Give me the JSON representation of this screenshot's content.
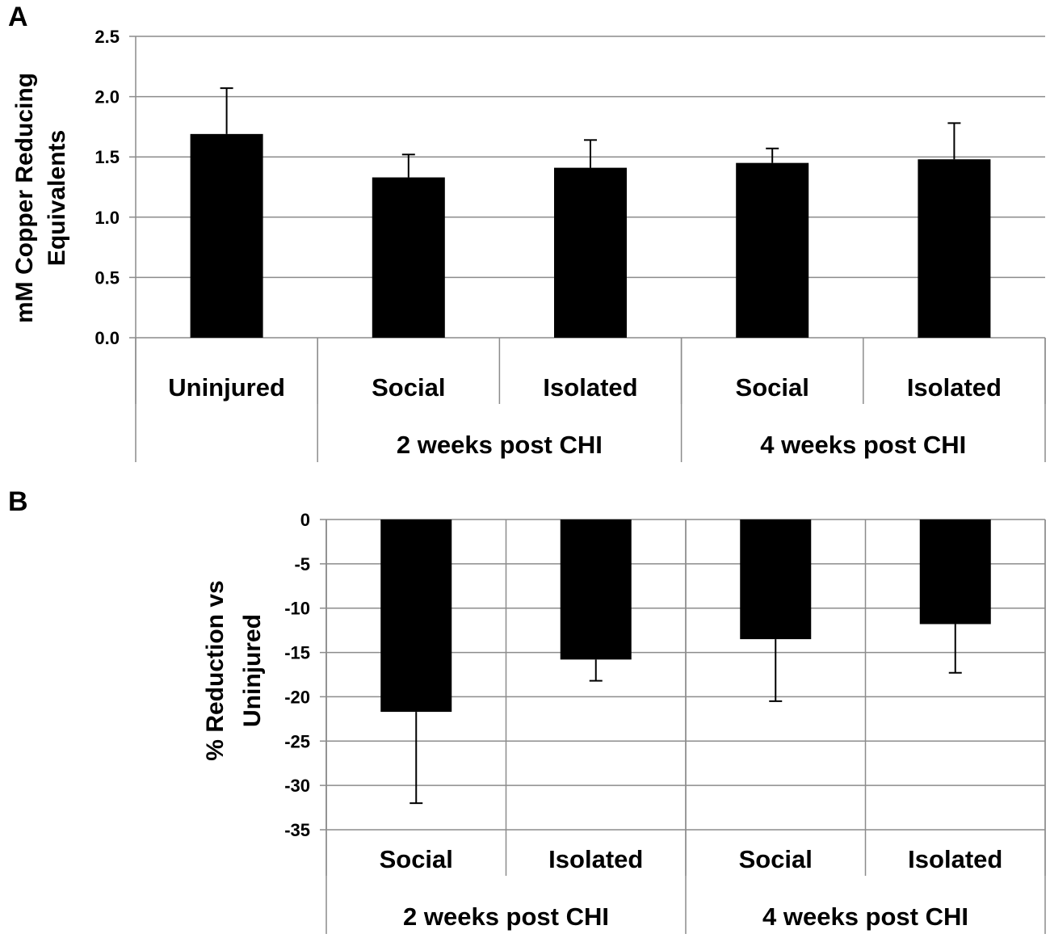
{
  "chart_data": [
    {
      "panel": "A",
      "type": "bar",
      "ylabel_line1": "mM Copper Reducing",
      "ylabel_line2": "Equivalents",
      "ylim": [
        0,
        2.5
      ],
      "yticks": [
        "0.0",
        "0.5",
        "1.0",
        "1.5",
        "2.0",
        "2.5"
      ],
      "ytick_values": [
        0,
        0.5,
        1.0,
        1.5,
        2.0,
        2.5
      ],
      "grid": true,
      "categories": [
        "Uninjured",
        "Social",
        "Isolated",
        "Social",
        "Isolated"
      ],
      "groups": [
        "",
        "2 weeks post CHI",
        "4 weeks post CHI"
      ],
      "values": [
        1.69,
        1.33,
        1.41,
        1.45,
        1.48
      ],
      "errors": [
        0.38,
        0.19,
        0.23,
        0.12,
        0.3
      ],
      "bar_color": "#000000"
    },
    {
      "panel": "B",
      "type": "bar",
      "ylabel_line1": "% Reduction vs",
      "ylabel_line2": "Uninjured",
      "ylim": [
        -35,
        0
      ],
      "yticks": [
        "0",
        "-5",
        "-10",
        "-15",
        "-20",
        "-25",
        "-30",
        "-35"
      ],
      "ytick_values": [
        0,
        -5,
        -10,
        -15,
        -20,
        -25,
        -30,
        -35
      ],
      "grid": true,
      "categories": [
        "Social",
        "Isolated",
        "Social",
        "Isolated"
      ],
      "groups": [
        "2 weeks post CHI",
        "4 weeks post CHI"
      ],
      "values": [
        -21.7,
        -15.8,
        -13.5,
        -11.8
      ],
      "errors": [
        10.3,
        2.4,
        7.0,
        5.5
      ],
      "bar_color": "#000000"
    }
  ]
}
